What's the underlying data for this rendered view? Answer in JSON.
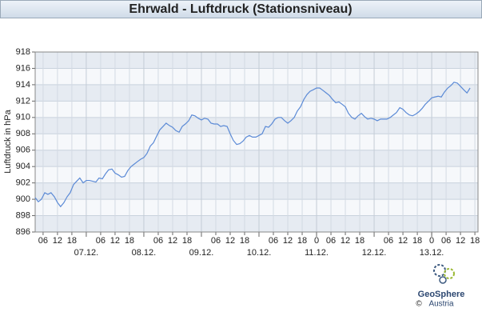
{
  "chart_data": {
    "type": "line",
    "title": "Ehrwald - Luftdruck (Stationsniveau)",
    "y_label": "Luftdruck in hPa",
    "x": [
      2.7,
      4,
      5.3,
      6.7,
      8,
      9.3,
      10.7,
      12,
      13.3,
      14.7,
      16,
      17.3,
      18.7,
      20,
      21.3,
      22.7,
      24,
      25.3,
      26.7,
      28,
      29.3,
      30.7,
      32,
      33.3,
      34.7,
      36,
      37.3,
      38.7,
      40,
      41.3,
      42.7,
      44,
      45.3,
      46.7,
      48,
      49.3,
      50.7,
      52,
      53.3,
      54.7,
      56,
      57.3,
      58.7,
      60,
      61.3,
      62.7,
      64,
      65.3,
      66.7,
      68,
      69.3,
      70.7,
      72,
      73.3,
      74.7,
      76,
      77.3,
      78.7,
      80,
      81.3,
      82.7,
      84,
      85.3,
      86.7,
      88,
      89.3,
      90.7,
      92,
      93.3,
      94.7,
      96,
      97.3,
      98.7,
      100,
      101.3,
      102.7,
      104,
      105.3,
      106.7,
      108,
      109.3,
      110.7,
      112,
      113.3,
      114.7,
      116,
      117.3,
      118.7,
      120,
      121.3,
      122.7,
      124,
      125.3,
      126.7,
      128,
      129.3,
      130.7,
      132,
      133.3,
      134.7,
      136,
      137.3,
      138.7,
      140,
      141.3,
      142.7,
      144,
      145.3,
      146.7,
      148,
      149.3,
      150.7,
      152,
      153.3,
      154.7,
      156,
      157.3,
      158.7,
      160,
      161.3,
      162.7,
      164,
      165.3,
      166.7,
      168,
      169.3,
      170.7,
      172,
      173.3,
      174.7,
      176,
      177.3,
      178.7,
      180,
      181.3,
      182.7,
      184
    ],
    "series": [
      {
        "name": "Luftdruck",
        "color": "#5b8ad6",
        "values": [
          900.2,
          899.7,
          900.0,
          900.8,
          900.6,
          900.8,
          900.3,
          899.6,
          899.1,
          899.6,
          900.3,
          900.8,
          901.8,
          902.2,
          902.6,
          902.0,
          902.3,
          902.3,
          902.2,
          902.1,
          902.6,
          902.5,
          903.1,
          903.6,
          903.7,
          903.2,
          903.0,
          902.7,
          902.8,
          903.5,
          904.0,
          904.3,
          904.6,
          904.9,
          905.1,
          905.6,
          906.5,
          906.9,
          907.7,
          908.5,
          908.9,
          909.3,
          909.0,
          908.8,
          908.4,
          908.2,
          908.9,
          909.2,
          909.6,
          910.3,
          910.2,
          909.9,
          909.7,
          909.9,
          909.8,
          909.3,
          909.2,
          909.2,
          908.9,
          909.0,
          908.9,
          908.0,
          907.2,
          906.7,
          906.8,
          907.1,
          907.6,
          907.8,
          907.6,
          907.6,
          907.8,
          908.0,
          908.9,
          908.8,
          909.2,
          909.8,
          910.0,
          910.0,
          909.6,
          909.3,
          909.6,
          910.0,
          910.8,
          911.3,
          912.2,
          912.8,
          913.2,
          913.4,
          913.6,
          913.6,
          913.3,
          913.0,
          912.7,
          912.2,
          911.8,
          911.9,
          911.6,
          911.3,
          910.5,
          910.0,
          909.8,
          910.2,
          910.5,
          910.1,
          909.8,
          909.9,
          909.8,
          909.6,
          909.8,
          909.8,
          909.8,
          910.0,
          910.3,
          910.6,
          911.2,
          911.0,
          910.6,
          910.3,
          910.2,
          910.4,
          910.7,
          911.1,
          911.6,
          912.0,
          912.4,
          912.5,
          912.6,
          912.5,
          913.1,
          913.6,
          913.9,
          914.3,
          914.2,
          913.8,
          913.4,
          913.0,
          913.6
        ]
      }
    ],
    "xlim": [
      2.7,
      187.3
    ],
    "xticks": [
      {
        "value": 6,
        "label": "06"
      },
      {
        "value": 12,
        "label": "12"
      },
      {
        "value": 18,
        "label": "18"
      },
      {
        "value": 30,
        "label": "06"
      },
      {
        "value": 36,
        "label": "12"
      },
      {
        "value": 42,
        "label": "18"
      },
      {
        "value": 54,
        "label": "06"
      },
      {
        "value": 60,
        "label": "12"
      },
      {
        "value": 66,
        "label": "18"
      },
      {
        "value": 78,
        "label": "06"
      },
      {
        "value": 84,
        "label": "12"
      },
      {
        "value": 90,
        "label": "18"
      },
      {
        "value": 102,
        "label": "06"
      },
      {
        "value": 108,
        "label": "12"
      },
      {
        "value": 114,
        "label": "18"
      },
      {
        "value": 120,
        "label": "0"
      },
      {
        "value": 126,
        "label": "06"
      },
      {
        "value": 132,
        "label": "12"
      },
      {
        "value": 138,
        "label": "18"
      },
      {
        "value": 150,
        "label": "06"
      },
      {
        "value": 156,
        "label": "12"
      },
      {
        "value": 162,
        "label": "18"
      },
      {
        "value": 168,
        "label": "0"
      },
      {
        "value": 174,
        "label": "06"
      },
      {
        "value": 180,
        "label": "12"
      },
      {
        "value": 186,
        "label": "18"
      }
    ],
    "date_ticks": [
      {
        "value": 24,
        "label": "07.12."
      },
      {
        "value": 48,
        "label": "08.12."
      },
      {
        "value": 72,
        "label": "09.12."
      },
      {
        "value": 96,
        "label": "10.12."
      },
      {
        "value": 120,
        "label": "11.12."
      },
      {
        "value": 144,
        "label": "12.12."
      },
      {
        "value": 168,
        "label": "13.12."
      }
    ],
    "ylim": [
      896,
      918
    ],
    "yticks": [
      896,
      898,
      900,
      902,
      904,
      906,
      908,
      910,
      912,
      914,
      916,
      918
    ],
    "grid": true
  },
  "logo": {
    "name": "GeoSphere",
    "sub": "Austria",
    "copyright": "©"
  }
}
